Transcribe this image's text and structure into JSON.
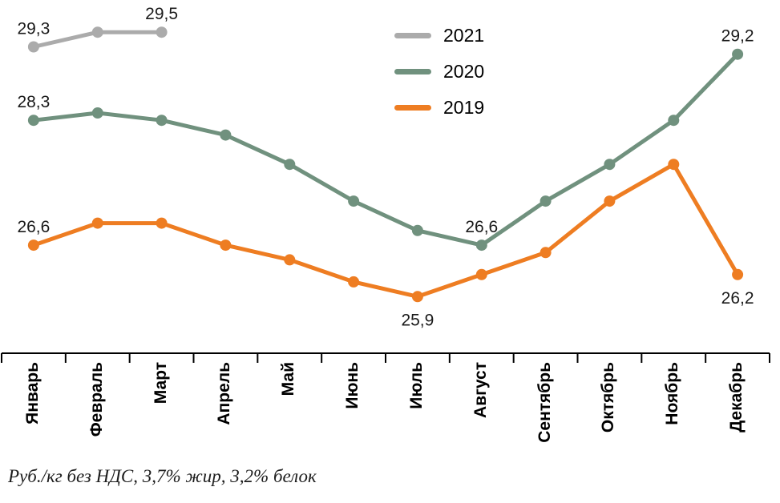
{
  "legend": {
    "items": [
      {
        "label": "2021",
        "color": "#ABABAB"
      },
      {
        "label": "2020",
        "color": "#70917E"
      },
      {
        "label": "2019",
        "color": "#EE7D22"
      }
    ]
  },
  "footer": {
    "caption": "Руб./кг без НДС, 3,7% жир, 3,2% белок"
  },
  "chart_data": {
    "type": "line",
    "title": "",
    "xlabel": "",
    "ylabel": "Руб./кг без НДС, 3,7% жир, 3,2% белок",
    "ylim": [
      25.6,
      29.7
    ],
    "grid": false,
    "legend_position": "top-center",
    "categories": [
      "Январь",
      "Февраль",
      "Март",
      "Апрель",
      "Май",
      "Июнь",
      "Июль",
      "Август",
      "Сентябрь",
      "Октябрь",
      "Ноябрь",
      "Декабрь"
    ],
    "series": [
      {
        "name": "2020",
        "color": "#70917E",
        "values": [
          28.3,
          28.4,
          28.3,
          28.1,
          27.7,
          27.2,
          26.8,
          26.6,
          27.2,
          27.7,
          28.3,
          29.2
        ]
      },
      {
        "name": "2019",
        "color": "#EE7D22",
        "values": [
          26.6,
          26.9,
          26.9,
          26.6,
          26.4,
          26.1,
          25.9,
          26.2,
          26.5,
          27.2,
          27.7,
          26.2
        ]
      },
      {
        "name": "2021",
        "color": "#ABABAB",
        "values": [
          29.3,
          29.5,
          29.5,
          null,
          null,
          null,
          null,
          null,
          null,
          null,
          null,
          null
        ]
      }
    ],
    "point_labels": [
      {
        "series": "2021",
        "index": 0,
        "text": "29,3",
        "position": "above"
      },
      {
        "series": "2021",
        "index": 2,
        "text": "29,5",
        "position": "above"
      },
      {
        "series": "2020",
        "index": 0,
        "text": "28,3",
        "position": "above"
      },
      {
        "series": "2019",
        "index": 0,
        "text": "26,6",
        "position": "above"
      },
      {
        "series": "2020",
        "index": 7,
        "text": "26,6",
        "position": "above"
      },
      {
        "series": "2019",
        "index": 6,
        "text": "25,9",
        "position": "below"
      },
      {
        "series": "2020",
        "index": 11,
        "text": "29,2",
        "position": "above"
      },
      {
        "series": "2019",
        "index": 11,
        "text": "26,2",
        "position": "below"
      }
    ]
  }
}
